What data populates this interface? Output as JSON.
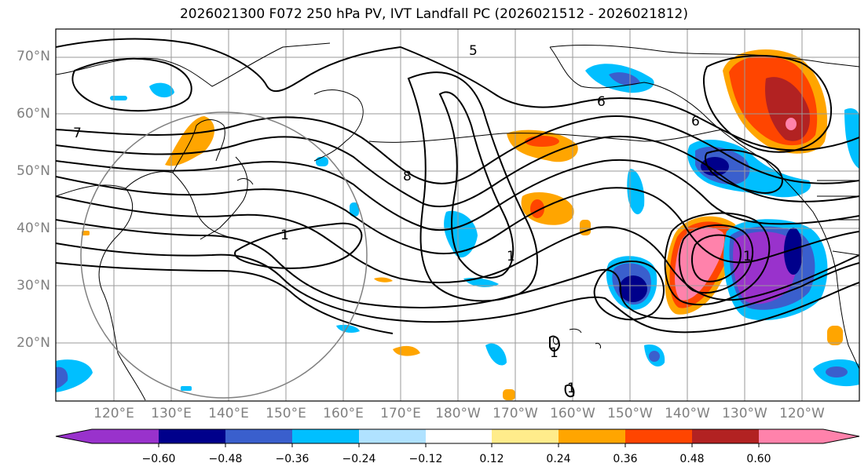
{
  "title": "2026021300 F072 250 hPa PV, IVT Landfall PC (2026021512 - 2026021812)",
  "lat_labels": [
    "70°N",
    "60°N",
    "50°N",
    "40°N",
    "30°N",
    "20°N"
  ],
  "lon_labels": [
    "120°E",
    "130°E",
    "140°E",
    "150°E",
    "160°E",
    "170°E",
    "180°W",
    "170°W",
    "160°W",
    "150°W",
    "140°W",
    "130°W",
    "120°W"
  ],
  "contour_labels": [
    "7",
    "5",
    "6",
    "1",
    "8",
    "6",
    "1",
    "1",
    "1",
    "1"
  ],
  "colorbar": {
    "ticks": [
      "−0.60",
      "−0.48",
      "−0.36",
      "−0.24",
      "−0.12",
      "0.12",
      "0.24",
      "0.36",
      "0.48",
      "0.60"
    ],
    "colors": [
      "#9932cc",
      "#00008b",
      "#3a5fcd",
      "#00bfff",
      "#b0e2ff",
      "#ffffff",
      "#ffec8b",
      "#ffa500",
      "#ff4500",
      "#b22222",
      "#ff82ab",
      "#ff82ab"
    ]
  }
}
